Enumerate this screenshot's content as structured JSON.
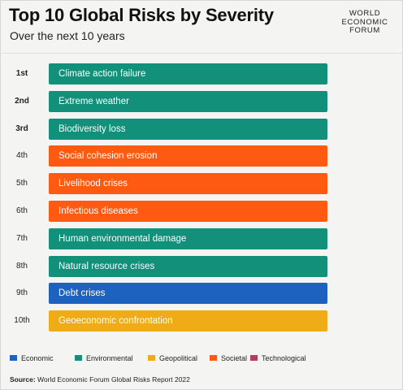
{
  "header": {
    "title": "Top 10 Global Risks by Severity",
    "subtitle": "Over the next 10 years",
    "logo_lines": [
      "WORLD",
      "ECONOMIC",
      "FORUM"
    ]
  },
  "colors": {
    "Economic": "#1e62c0",
    "Environmental": "#12907a",
    "Geopolitical": "#f0ac17",
    "Societal": "#ff5a12",
    "Technological": "#b63a66"
  },
  "chart_data": {
    "type": "bar",
    "categories": [
      "Climate action failure",
      "Extreme weather",
      "Biodiversity loss",
      "Social cohesion erosion",
      "Livelihood crises",
      "Infectious diseases",
      "Human environmental damage",
      "Natural resource crises",
      "Debt crises",
      "Geoeconomic confrontation"
    ],
    "ranks": [
      "1st",
      "2nd",
      "3rd",
      "4th",
      "5th",
      "6th",
      "7th",
      "8th",
      "9th",
      "10th"
    ],
    "risk_categories": [
      "Environmental",
      "Environmental",
      "Environmental",
      "Societal",
      "Societal",
      "Societal",
      "Environmental",
      "Environmental",
      "Economic",
      "Geopolitical"
    ],
    "legend": [
      "Economic",
      "Environmental",
      "Geopolitical",
      "Societal",
      "Technological"
    ],
    "title": "Top 10 Global Risks by Severity",
    "subtitle": "Over the next 10 years"
  },
  "footer": {
    "source_label": "Source:",
    "source_text": " World Economic Forum Global Risks Report 2022"
  }
}
